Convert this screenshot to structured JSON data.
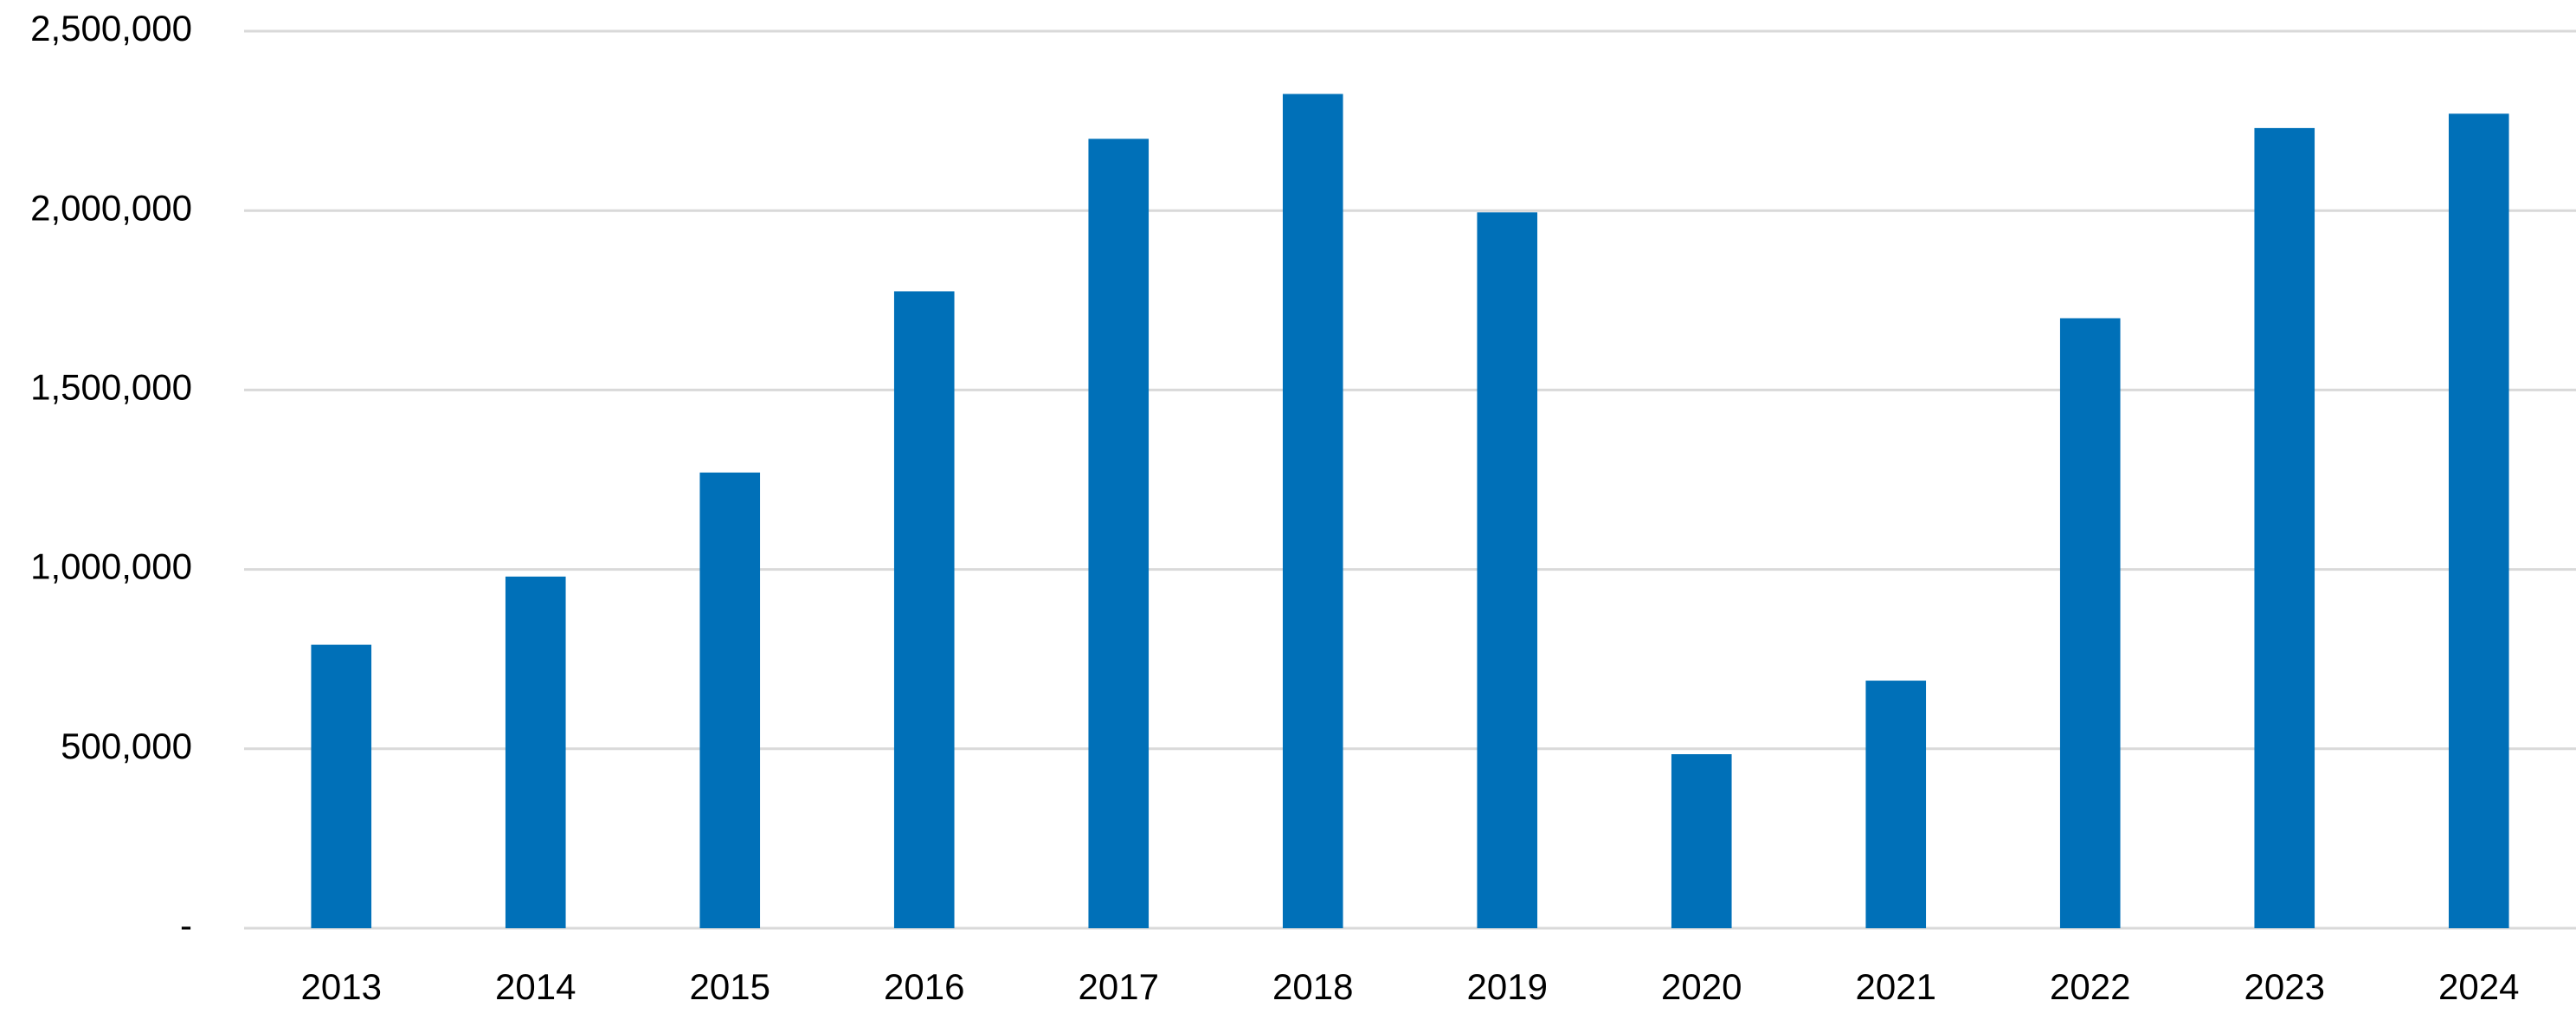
{
  "chart_data": {
    "type": "bar",
    "categories": [
      "2013",
      "2014",
      "2015",
      "2016",
      "2017",
      "2018",
      "2019",
      "2020",
      "2021",
      "2022",
      "2023",
      "2024"
    ],
    "values": [
      790000,
      980000,
      1270000,
      1775000,
      2200000,
      2325000,
      1995000,
      485000,
      690000,
      1700000,
      2230000,
      2270000
    ],
    "color": "#0070b8",
    "ylim": [
      0,
      2500000
    ],
    "yticks": [
      {
        "value": 0,
        "label": "-"
      },
      {
        "value": 500000,
        "label": "500,000"
      },
      {
        "value": 1000000,
        "label": "1,000,000"
      },
      {
        "value": 1500000,
        "label": "1,500,000"
      },
      {
        "value": 2000000,
        "label": "2,000,000"
      },
      {
        "value": 2500000,
        "label": "2,500,000"
      }
    ],
    "grid": true
  }
}
